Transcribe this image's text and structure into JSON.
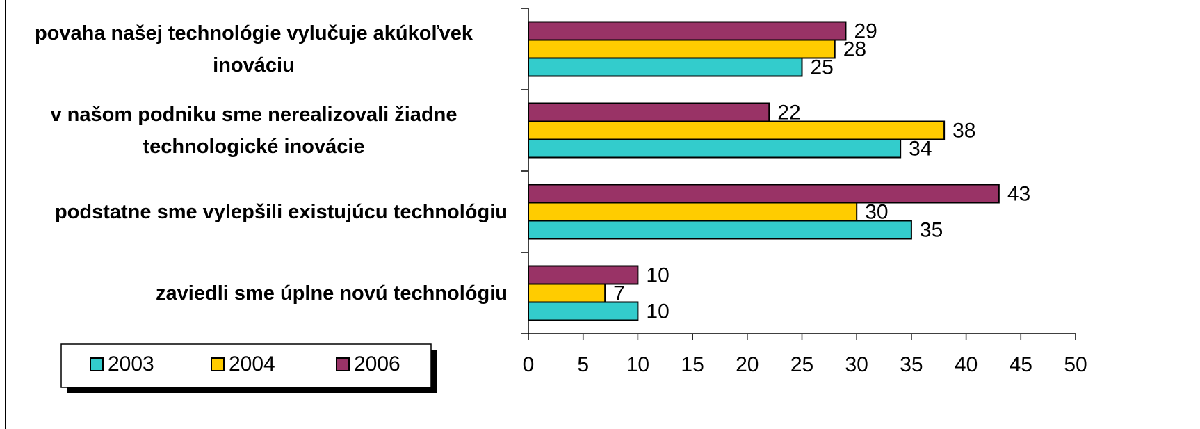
{
  "chart_data": {
    "type": "hbar",
    "categories": [
      "povaha našej technológie vylučuje akúkoľvek inováciu",
      "v našom podniku sme nerealizovali žiadne technologické inovácie",
      "podstatne sme vylepšili existujúcu technológiu",
      "zaviedli sme úplne novú technológiu"
    ],
    "series": [
      {
        "name": "2003",
        "color": "#33cccc",
        "values": [
          25,
          34,
          35,
          10
        ]
      },
      {
        "name": "2004",
        "color": "#ffcc00",
        "values": [
          28,
          38,
          30,
          7
        ]
      },
      {
        "name": "2006",
        "color": "#993366",
        "values": [
          29,
          22,
          43,
          10
        ]
      }
    ],
    "xlim": [
      0,
      50
    ],
    "xticks": [
      0,
      5,
      10,
      15,
      20,
      25,
      30,
      35,
      40,
      45,
      50
    ]
  }
}
